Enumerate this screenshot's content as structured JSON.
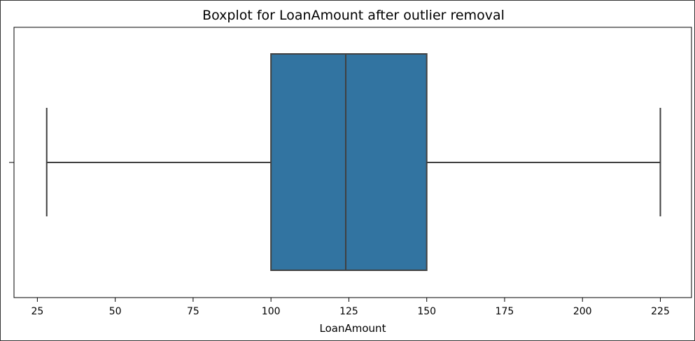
{
  "chart_data": {
    "type": "boxplot",
    "title": "Boxplot for LoanAmount after outlier removal",
    "xlabel": "LoanAmount",
    "ylabel": "",
    "xlim": [
      17.5,
      235
    ],
    "xticks": [
      25,
      50,
      75,
      100,
      125,
      150,
      175,
      200,
      225
    ],
    "grid": false,
    "box": {
      "whisker_low": 28,
      "q1": 100,
      "median": 124,
      "q3": 150,
      "whisker_high": 225
    },
    "colors": {
      "box_fill": "#3274a1",
      "lines": "#404040",
      "frame": "#000000"
    }
  }
}
